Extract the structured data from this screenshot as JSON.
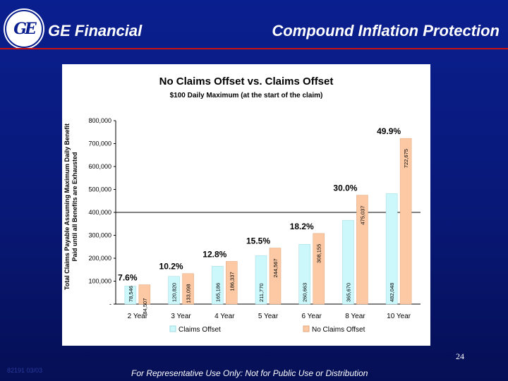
{
  "header": {
    "logo_text": "GE",
    "brand": "GE Financial",
    "title": "Compound Inflation Protection"
  },
  "footer": {
    "page_number": "24",
    "code": "82191 03/03",
    "disclaimer": "For Representative Use Only: Not for Public Use or Distribution"
  },
  "colors": {
    "background": "#0a1f8f",
    "rule": "#cc1111",
    "claims_offset": "#ccf8fc",
    "no_claims_offset": "#fcc9a4"
  },
  "chart_data": {
    "type": "bar",
    "title": "No Claims Offset vs. Claims Offset",
    "subtitle": "$100 Daily Maximum (at the start of the claim)",
    "ylabel": "Total Claims Payable Assuming Maximum Daily Benefit Paid until all Benefits are Exhausted",
    "xlabel": "",
    "ylim": [
      0,
      800000
    ],
    "yticks": [
      "-",
      "100,000",
      "200,000",
      "300,000",
      "400,000",
      "500,000",
      "600,000",
      "700,000",
      "800,000"
    ],
    "categories": [
      "2 Year",
      "3 Year",
      "4 Year",
      "5 Year",
      "6 Year",
      "8 Year",
      "10 Year"
    ],
    "series": [
      {
        "name": "Claims Offset",
        "values": [
          78546,
          120820,
          165186,
          211770,
          260663,
          365670,
          482048
        ],
        "labels": [
          "78,546",
          "120,820",
          "165,186",
          "211,770",
          "260,663",
          "365,670",
          "482,048"
        ]
      },
      {
        "name": "No Claims Offset",
        "values": [
          84507,
          133098,
          186337,
          244567,
          308155,
          475037,
          722675
        ],
        "labels": [
          "84,507",
          "133,098",
          "186,337",
          "244,567",
          "308,155",
          "475,037",
          "722,675"
        ]
      }
    ],
    "percentages": [
      "7.6%",
      "10.2%",
      "12.8%",
      "15.5%",
      "18.2%",
      "30.0%",
      "49.9%"
    ],
    "legend_position": "bottom",
    "grid": "400,000 line only"
  }
}
